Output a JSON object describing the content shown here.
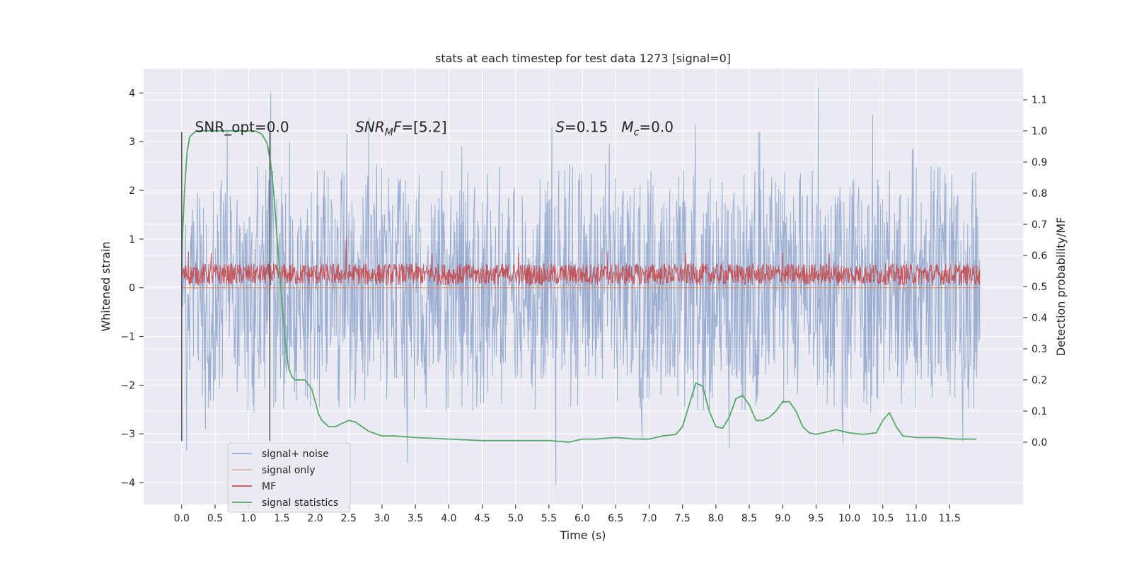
{
  "chart_data": {
    "type": "line",
    "title": "stats at each timestep for test data 1273 [signal=0]",
    "xlabel": "Time (s)",
    "ylabel": "Whitened strain",
    "ylabel_right": "Detection probability/MF",
    "xlim": [
      -0.57,
      12.6
    ],
    "ylim": [
      -4.45,
      4.5
    ],
    "ylim_right": [
      -0.2,
      1.2
    ],
    "x_ticks": [
      0.0,
      0.5,
      1.0,
      1.5,
      2.0,
      2.5,
      3.0,
      3.5,
      4.0,
      4.5,
      5.0,
      5.5,
      6.0,
      6.5,
      7.0,
      7.5,
      8.0,
      8.5,
      9.0,
      9.5,
      10.0,
      10.5,
      11.0,
      11.5
    ],
    "x_tick_labels": [
      "0.0",
      "0.5",
      "1.0",
      "1.5",
      "2.0",
      "2.5",
      "3.0",
      "3.5",
      "4.0",
      "4.5",
      "5.0",
      "5.5",
      "6.0",
      "6.5",
      "7.0",
      "7.5",
      "8.0",
      "8.5",
      "9.0",
      "9.5",
      "10.0",
      "10.5",
      "11.0",
      "11.5"
    ],
    "y_ticks": [
      -4,
      -3,
      -2,
      -1,
      0,
      1,
      2,
      3,
      4
    ],
    "y_tick_labels": [
      "−4",
      "−3",
      "−2",
      "−1",
      "0",
      "1",
      "2",
      "3",
      "4"
    ],
    "y_ticks_right": [
      0.0,
      0.1,
      0.2,
      0.3,
      0.4,
      0.5,
      0.6,
      0.7,
      0.8,
      0.9,
      1.0,
      1.1
    ],
    "y_tick_labels_right": [
      "0.0",
      "0.1",
      "0.2",
      "0.3",
      "0.4",
      "0.5",
      "0.6",
      "0.7",
      "0.8",
      "0.9",
      "1.0",
      "1.1"
    ],
    "grid": true,
    "background": "#eaeaf2",
    "annotations": [
      {
        "text": "SNR_opt=0.0",
        "x": 0.2,
        "y": 3.3,
        "style": "normal"
      },
      {
        "text": "SNR_MF=[5.2]",
        "x": 2.6,
        "y": 3.3,
        "style": "snr-mf"
      },
      {
        "text": "S=0.15   M_c=0.0",
        "x": 5.6,
        "y": 3.3,
        "style": "s-mc"
      }
    ],
    "vlines": [
      {
        "x": 0.0,
        "ymin": -3.15,
        "ymax": 3.2,
        "color": "#555555"
      },
      {
        "x": 1.32,
        "ymin": -3.15,
        "ymax": 3.2,
        "color": "#555555"
      }
    ],
    "legend": {
      "placement": "lower-left",
      "entries": [
        {
          "label": "signal+ noise",
          "color": "#4c72b0"
        },
        {
          "label": "signal only",
          "color": "#dd8452"
        },
        {
          "label": "MF",
          "color": "#c44e52"
        },
        {
          "label": "signal statistics",
          "color": "#55a868"
        }
      ]
    },
    "series": [
      {
        "name": "signal+ noise",
        "axis": "left",
        "color": "#4c72b0",
        "render": "dense-noise",
        "x_range": [
          0.0,
          11.95
        ],
        "typical_upper": 1.9,
        "typical_lower": -1.9,
        "peaks": [
          {
            "x": 0.08,
            "y": -3.35
          },
          {
            "x": 0.68,
            "y": 3.25
          },
          {
            "x": 1.33,
            "y": 4.0
          },
          {
            "x": 1.62,
            "y": 3.0
          },
          {
            "x": 2.48,
            "y": 3.15
          },
          {
            "x": 2.8,
            "y": 3.5
          },
          {
            "x": 3.38,
            "y": -3.6
          },
          {
            "x": 5.55,
            "y": 3.3
          },
          {
            "x": 5.6,
            "y": -4.05
          },
          {
            "x": 7.7,
            "y": 3.35
          },
          {
            "x": 8.2,
            "y": -3.3
          },
          {
            "x": 8.65,
            "y": 3.2
          },
          {
            "x": 9.53,
            "y": 4.1
          },
          {
            "x": 9.9,
            "y": -3.2
          },
          {
            "x": 10.35,
            "y": 3.55
          },
          {
            "x": 11.7,
            "y": -3.15
          },
          {
            "x": 6.9,
            "y": -3.1
          },
          {
            "x": 4.2,
            "y": 2.9
          },
          {
            "x": 0.35,
            "y": -2.9
          },
          {
            "x": 6.4,
            "y": 2.95
          },
          {
            "x": 10.95,
            "y": 2.85
          }
        ]
      },
      {
        "name": "signal only",
        "axis": "left",
        "color": "#dd8452",
        "x": [
          0.0,
          11.95
        ],
        "y": [
          0.0,
          0.0
        ]
      },
      {
        "name": "MF",
        "axis": "left",
        "color": "#c44e52",
        "render": "dense-noise",
        "x_range": [
          0.0,
          11.95
        ],
        "typical_upper": 0.5,
        "typical_lower": 0.05,
        "peaks": [
          {
            "x": 0.1,
            "y": 0.75
          },
          {
            "x": 0.45,
            "y": 0.72
          },
          {
            "x": 2.47,
            "y": 1.05
          },
          {
            "x": 3.75,
            "y": 0.7
          },
          {
            "x": 5.05,
            "y": 0.72
          },
          {
            "x": 6.38,
            "y": 0.75
          },
          {
            "x": 7.55,
            "y": 0.73
          },
          {
            "x": 9.0,
            "y": 0.72
          },
          {
            "x": 9.7,
            "y": 0.7
          }
        ]
      },
      {
        "name": "signal statistics",
        "axis": "right",
        "color": "#55a868",
        "x": [
          0.0,
          0.04,
          0.08,
          0.12,
          0.16,
          0.22,
          0.3,
          0.5,
          0.8,
          1.0,
          1.1,
          1.2,
          1.28,
          1.33,
          1.38,
          1.43,
          1.5,
          1.55,
          1.6,
          1.65,
          1.7,
          1.75,
          1.85,
          1.95,
          2.0,
          2.05,
          2.1,
          2.2,
          2.3,
          2.4,
          2.5,
          2.6,
          2.7,
          2.8,
          3.0,
          3.2,
          3.5,
          4.0,
          4.5,
          5.0,
          5.5,
          5.8,
          6.0,
          6.2,
          6.5,
          6.8,
          7.0,
          7.2,
          7.4,
          7.5,
          7.6,
          7.7,
          7.8,
          7.9,
          8.0,
          8.1,
          8.2,
          8.3,
          8.4,
          8.5,
          8.6,
          8.7,
          8.8,
          8.9,
          9.0,
          9.1,
          9.2,
          9.3,
          9.4,
          9.5,
          9.6,
          9.8,
          10.0,
          10.2,
          10.4,
          10.5,
          10.6,
          10.7,
          10.8,
          11.0,
          11.3,
          11.6,
          11.9
        ],
        "y": [
          0.6,
          0.8,
          0.93,
          0.98,
          0.99,
          1.0,
          1.0,
          1.0,
          1.0,
          1.0,
          1.0,
          0.99,
          0.96,
          0.9,
          0.8,
          0.65,
          0.45,
          0.32,
          0.24,
          0.21,
          0.2,
          0.2,
          0.2,
          0.17,
          0.13,
          0.09,
          0.07,
          0.05,
          0.05,
          0.06,
          0.07,
          0.065,
          0.05,
          0.035,
          0.02,
          0.02,
          0.015,
          0.01,
          0.005,
          0.005,
          0.005,
          0.0,
          0.01,
          0.01,
          0.015,
          0.01,
          0.01,
          0.02,
          0.025,
          0.05,
          0.12,
          0.19,
          0.18,
          0.1,
          0.05,
          0.045,
          0.08,
          0.14,
          0.15,
          0.12,
          0.07,
          0.07,
          0.08,
          0.1,
          0.13,
          0.13,
          0.1,
          0.05,
          0.03,
          0.025,
          0.03,
          0.04,
          0.03,
          0.025,
          0.03,
          0.07,
          0.095,
          0.05,
          0.02,
          0.015,
          0.015,
          0.01,
          0.01
        ]
      }
    ]
  }
}
